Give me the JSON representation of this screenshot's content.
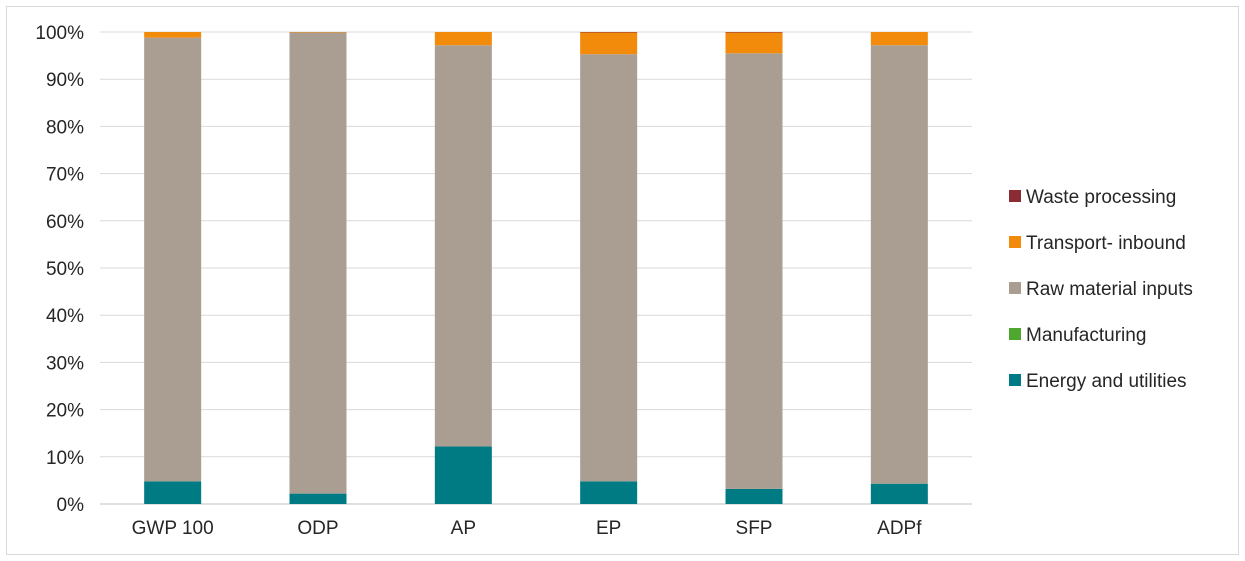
{
  "chart_data": {
    "type": "bar",
    "stacked": true,
    "percent": true,
    "categories": [
      "GWP 100",
      "ODP",
      "AP",
      "EP",
      "SFP",
      "ADPf"
    ],
    "series": [
      {
        "name": "Energy and utilities",
        "color": "#007b84",
        "values": [
          4.8,
          2.2,
          12.2,
          4.8,
          3.2,
          4.3
        ]
      },
      {
        "name": "Manufacturing",
        "color": "#4ea72e",
        "values": [
          0,
          0,
          0,
          0,
          0,
          0
        ]
      },
      {
        "name": "Raw material inputs",
        "color": "#aa9e92",
        "values": [
          94.0,
          97.7,
          85.0,
          90.5,
          92.3,
          92.9
        ]
      },
      {
        "name": "Transport- inbound",
        "color": "#f28a0b",
        "values": [
          1.2,
          0.1,
          2.8,
          4.6,
          4.4,
          2.8
        ]
      },
      {
        "name": "Waste processing",
        "color": "#8b2b33",
        "values": [
          0,
          0,
          0,
          0.1,
          0.1,
          0
        ]
      }
    ],
    "yticks": [
      "0%",
      "10%",
      "20%",
      "30%",
      "40%",
      "50%",
      "60%",
      "70%",
      "80%",
      "90%",
      "100%"
    ],
    "ylim": [
      0,
      100
    ],
    "grid": true,
    "legend": {
      "placement": "right",
      "order": [
        "Waste processing",
        "Transport- inbound",
        "Raw material inputs",
        "Manufacturing",
        "Energy and utilities"
      ]
    },
    "gridColor": "#d9d9d9",
    "axisColor": "#bfbfbf"
  }
}
